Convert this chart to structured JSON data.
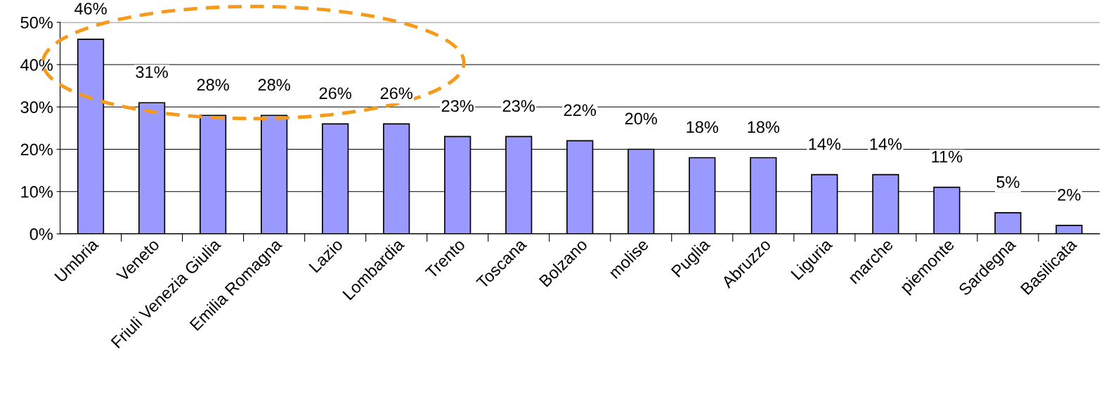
{
  "chart_data": {
    "type": "bar",
    "categories": [
      "Umbria",
      "Veneto",
      "Friuli Venezia Giulia",
      "Emilia Romagna",
      "Lazio",
      "Lombardia",
      "Trento",
      "Toscana",
      "Bolzano",
      "molise",
      "Puglia",
      "Abruzzo",
      "Liguria",
      "marche",
      "piemonte",
      "Sardegna",
      "Basilicata"
    ],
    "values": [
      46,
      31,
      28,
      28,
      26,
      26,
      23,
      23,
      22,
      20,
      18,
      18,
      14,
      14,
      11,
      5,
      2
    ],
    "color": "#9999ff",
    "ylim": [
      0,
      50
    ],
    "yticks": [
      {
        "value": 0,
        "label": "0%"
      },
      {
        "value": 10,
        "label": "10%"
      },
      {
        "value": 20,
        "label": "20%"
      },
      {
        "value": 30,
        "label": "30%"
      },
      {
        "value": 40,
        "label": "40%"
      },
      {
        "value": 50,
        "label": "50%"
      }
    ],
    "grid": "y",
    "value_labels": [
      "46%",
      "31%",
      "28%",
      "28%",
      "26%",
      "26%",
      "23%",
      "23%",
      "22%",
      "20%",
      "18%",
      "18%",
      "14%",
      "14%",
      "11%",
      "5%",
      "2%"
    ],
    "legend": false
  }
}
